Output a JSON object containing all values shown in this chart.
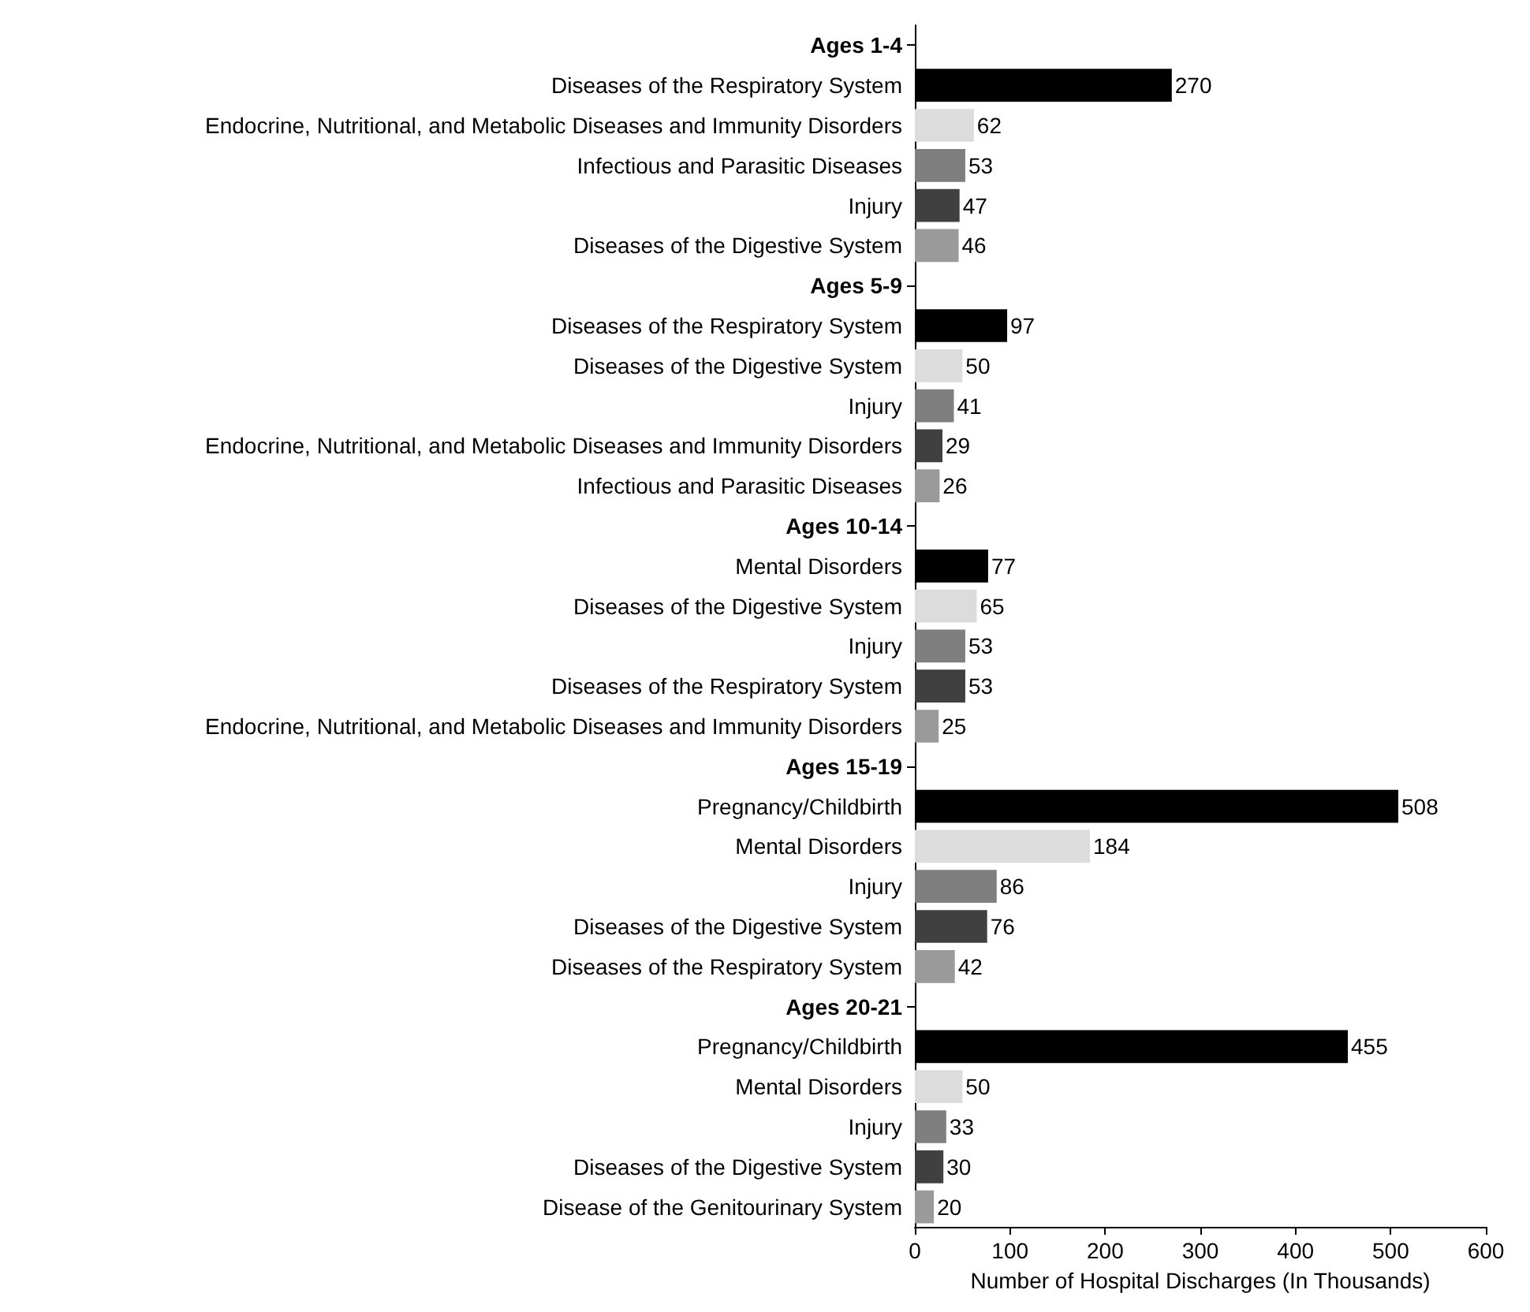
{
  "chart_data": {
    "type": "bar",
    "orientation": "horizontal",
    "xlabel": "Number of Hospital Discharges (In Thousands)",
    "categories": [
      "Ages 1-4",
      "Diseases of the Respiratory System",
      "Endocrine, Nutritional, and Metabolic Diseases and Immunity Disorders",
      "Infectious and Parasitic Diseases",
      "Injury",
      "Diseases of the Digestive System",
      "Ages 5-9",
      "Diseases of the Respiratory System",
      "Diseases of the Digestive System",
      "Injury",
      "Endocrine, Nutritional, and Metabolic Diseases and Immunity Disorders",
      "Infectious and Parasitic Diseases",
      "Ages 10-14",
      "Mental Disorders",
      "Diseases of the Digestive System",
      "Injury",
      "Diseases of the Respiratory System",
      "Endocrine, Nutritional, and Metabolic Diseases and Immunity Disorders",
      "Ages 15-19",
      "Pregnancy/Childbirth",
      "Mental Disorders",
      "Injury",
      "Diseases of the Digestive System",
      "Diseases of the Respiratory System",
      "Ages 20-21",
      "Pregnancy/Childbirth",
      "Mental Disorders",
      "Injury",
      "Diseases of the Digestive System",
      "Disease of the Genitourinary System"
    ],
    "values": [
      null,
      270,
      62,
      53,
      47,
      46,
      null,
      97,
      50,
      41,
      29,
      26,
      null,
      77,
      65,
      53,
      53,
      25,
      null,
      508,
      184,
      86,
      76,
      42,
      null,
      455,
      50,
      33,
      30,
      20
    ],
    "colors": [
      null,
      "#000000",
      "#dcdcdc",
      "#7f7f7f",
      "#404040",
      "#9a9a9a",
      null,
      "#000000",
      "#dcdcdc",
      "#7f7f7f",
      "#404040",
      "#9a9a9a",
      null,
      "#000000",
      "#dcdcdc",
      "#7f7f7f",
      "#404040",
      "#9a9a9a",
      null,
      "#000000",
      "#dcdcdc",
      "#7f7f7f",
      "#404040",
      "#9a9a9a",
      null,
      "#000000",
      "#dcdcdc",
      "#7f7f7f",
      "#404040",
      "#9a9a9a"
    ],
    "xlim": [
      0,
      600
    ],
    "xticks": [
      0,
      100,
      200,
      300,
      400,
      500,
      600
    ],
    "data_labels": true
  }
}
